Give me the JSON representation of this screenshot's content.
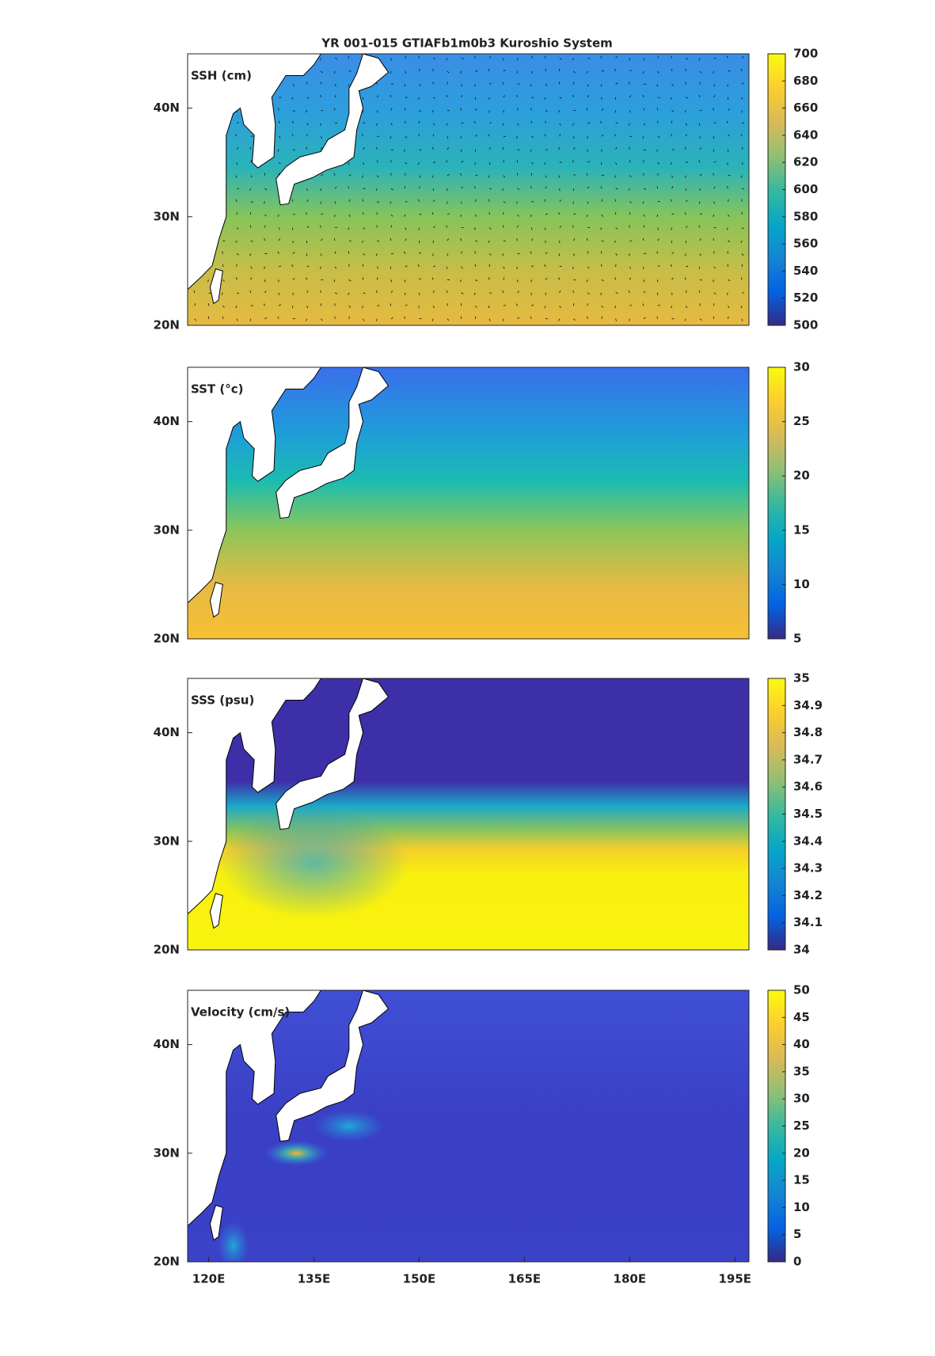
{
  "title": "YR 001-015 GTIAFb1m0b3 Kuroshio System",
  "colormap": [
    "#352a87",
    "#0363e1",
    "#1485d4",
    "#06a7c6",
    "#38b99e",
    "#92bf73",
    "#d9ba56",
    "#fcce2e",
    "#f9fb0e"
  ],
  "chart_data": [
    {
      "type": "heatmap",
      "label": "SSH (cm)",
      "xlim": [
        117,
        197
      ],
      "ylim": [
        20,
        45
      ],
      "yticks": [
        {
          "value": 20,
          "label": "20N"
        },
        {
          "value": 30,
          "label": "30N"
        },
        {
          "value": 40,
          "label": "40N"
        }
      ],
      "clim": [
        500,
        700
      ],
      "cticks": [
        500,
        520,
        540,
        560,
        580,
        600,
        620,
        640,
        660,
        680,
        700
      ],
      "quiver": true
    },
    {
      "type": "heatmap",
      "label": "SST (°c)",
      "xlim": [
        117,
        197
      ],
      "ylim": [
        20,
        45
      ],
      "yticks": [
        {
          "value": 20,
          "label": "20N"
        },
        {
          "value": 30,
          "label": "30N"
        },
        {
          "value": 40,
          "label": "40N"
        }
      ],
      "clim": [
        5,
        30
      ],
      "cticks": [
        5,
        10,
        15,
        20,
        25,
        30
      ]
    },
    {
      "type": "heatmap",
      "label": "SSS (psu)",
      "xlim": [
        117,
        197
      ],
      "ylim": [
        20,
        45
      ],
      "yticks": [
        {
          "value": 20,
          "label": "20N"
        },
        {
          "value": 30,
          "label": "30N"
        },
        {
          "value": 40,
          "label": "40N"
        }
      ],
      "clim": [
        34,
        35
      ],
      "cticks": [
        34,
        34.1,
        34.2,
        34.3,
        34.4,
        34.5,
        34.6,
        34.7,
        34.8,
        34.9,
        35
      ]
    },
    {
      "type": "heatmap",
      "label": "Velocity (cm/s)",
      "xlim": [
        117,
        197
      ],
      "ylim": [
        20,
        45
      ],
      "yticks": [
        {
          "value": 20,
          "label": "20N"
        },
        {
          "value": 30,
          "label": "30N"
        },
        {
          "value": 40,
          "label": "40N"
        }
      ],
      "xticks": [
        {
          "value": 120,
          "label": "120E"
        },
        {
          "value": 135,
          "label": "135E"
        },
        {
          "value": 150,
          "label": "150E"
        },
        {
          "value": 165,
          "label": "165E"
        },
        {
          "value": 180,
          "label": "180E"
        },
        {
          "value": 195,
          "label": "195E"
        }
      ],
      "clim": [
        0,
        50
      ],
      "cticks": [
        0,
        5,
        10,
        15,
        20,
        25,
        30,
        35,
        40,
        45,
        50
      ]
    }
  ]
}
